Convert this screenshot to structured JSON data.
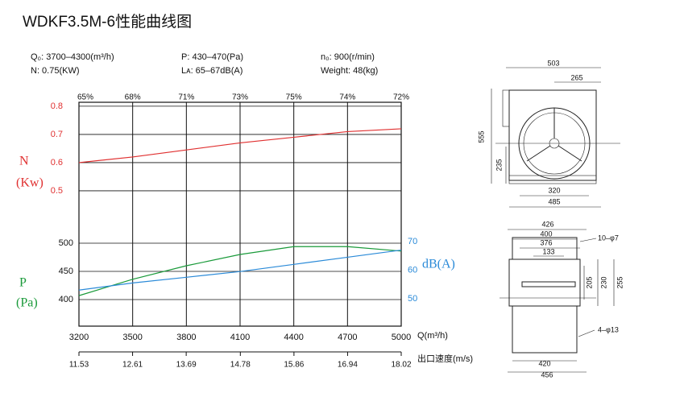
{
  "title": "WDKF3.5M-6性能曲线图",
  "specs": [
    "Q₀: 3700–4300(m³/h)",
    "N: 0.75(KW)",
    "P: 430–470(Pa)",
    "Lᴀ: 65–67dB(A)",
    "n₀: 900(r/min)",
    "Weight: 48(kg)"
  ],
  "chart_data": {
    "type": "line",
    "x": [
      3200,
      3500,
      3800,
      4100,
      4400,
      4700,
      5000
    ],
    "xlim": [
      3200,
      5000
    ],
    "xticks": [
      3200,
      3500,
      3800,
      4100,
      4400,
      4700,
      5000
    ],
    "x_label": "Q(m³/h)",
    "x2lim": [
      11.53,
      18.02
    ],
    "x2ticks": [
      11.53,
      12.61,
      13.69,
      14.78,
      15.86,
      16.94,
      18.02
    ],
    "x2_label": "出口速度(m/s)",
    "efficiency": {
      "values": [
        65,
        68,
        71,
        73,
        75,
        74,
        72
      ],
      "value_labels": [
        "65%",
        "68%",
        "71%",
        "73%",
        "75%",
        "74%",
        "72%"
      ]
    },
    "ylim": [
      0.02,
      0.814
    ],
    "yticks": [
      0.8,
      0.7,
      0.6,
      0.5
    ],
    "y_label": [
      "N",
      "(Kw)"
    ],
    "y_color": "#e03030",
    "y3lim": [
      352.9,
      750
    ],
    "y3ticks": [
      500,
      450,
      400
    ],
    "y3_label": [
      "P",
      "(Pa)"
    ],
    "y3_color": "#1a9a3a",
    "y2lim": [
      40.4,
      118.7
    ],
    "y2ticks": [
      70,
      60,
      50
    ],
    "y2_label": "dB(A)",
    "y2_color": "#2a8ad8",
    "grid": true,
    "series": [
      {
        "name": "N",
        "color": "#e03030",
        "axis": "y",
        "values": [
          0.6,
          0.62,
          0.645,
          0.67,
          0.69,
          0.71,
          0.72
        ]
      },
      {
        "name": "P",
        "color": "#1a9a3a",
        "axis": "y3",
        "values": [
          407,
          436,
          460,
          480,
          494,
          494,
          486
        ]
      },
      {
        "name": "dB(A)",
        "color": "#2a8ad8",
        "axis": "y2",
        "values": [
          53,
          55.5,
          57.5,
          59.5,
          62,
          64.5,
          67
        ]
      }
    ]
  },
  "drawings": {
    "top": [
      "503",
      "265",
      "555",
      "235",
      "320",
      "485"
    ],
    "side": [
      "426",
      "400",
      "376",
      "133",
      "10–φ7",
      "205",
      "230",
      "255",
      "420",
      "456",
      "4–φ13"
    ]
  }
}
